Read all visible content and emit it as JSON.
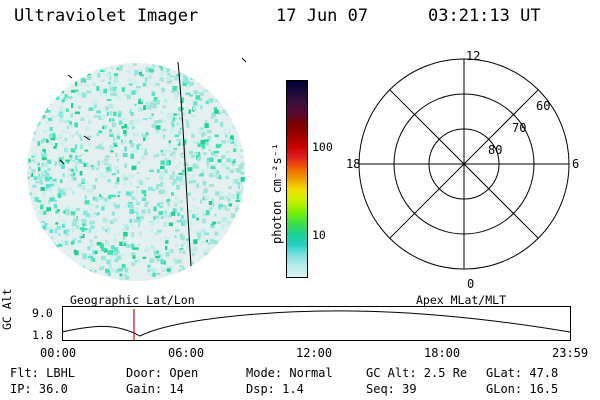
{
  "header": {
    "title": "Ultraviolet Imager",
    "date": "17 Jun 07",
    "time": "03:21:13 UT"
  },
  "colorbar": {
    "label": "photon cm⁻²s⁻¹",
    "ticks": [
      "100",
      "10"
    ],
    "colors": [
      "#000033",
      "#1c0a3c",
      "#3b0d3c",
      "#5a0a30",
      "#7a0000",
      "#a00000",
      "#cc0000",
      "#e02020",
      "#f06000",
      "#f0a000",
      "#f0e000",
      "#c8f000",
      "#80f000",
      "#40e040",
      "#20d090",
      "#20d0c0",
      "#80e0e0",
      "#bcecec",
      "#dcf0f0"
    ]
  },
  "geo_panel": {
    "label": "Geographic Lat/Lon"
  },
  "polar": {
    "mlt_labels": [
      "12",
      "18",
      "6",
      "0"
    ],
    "lat_labels": [
      "60",
      "70",
      "80"
    ],
    "label": "Apex MLat/MLT"
  },
  "altitude": {
    "axis_title": "GC Alt",
    "ticks": [
      "9.0",
      "1.8"
    ],
    "time_ticks": [
      "00:00",
      "06:00",
      "12:00",
      "18:00",
      "23:59"
    ],
    "current_time_fraction": 0.14
  },
  "footer": {
    "flt": "Flt: LBHL",
    "ip": "IP: 36.0",
    "door": "Door: Open",
    "gain": "Gain: 14",
    "mode": "Mode: Normal",
    "dsp": "Dsp:    1.4",
    "gcalt": "GC Alt: 2.5 Re",
    "seq": "Seq: 39",
    "glat": "GLat:  47.8",
    "glon": "GLon:  16.5"
  }
}
